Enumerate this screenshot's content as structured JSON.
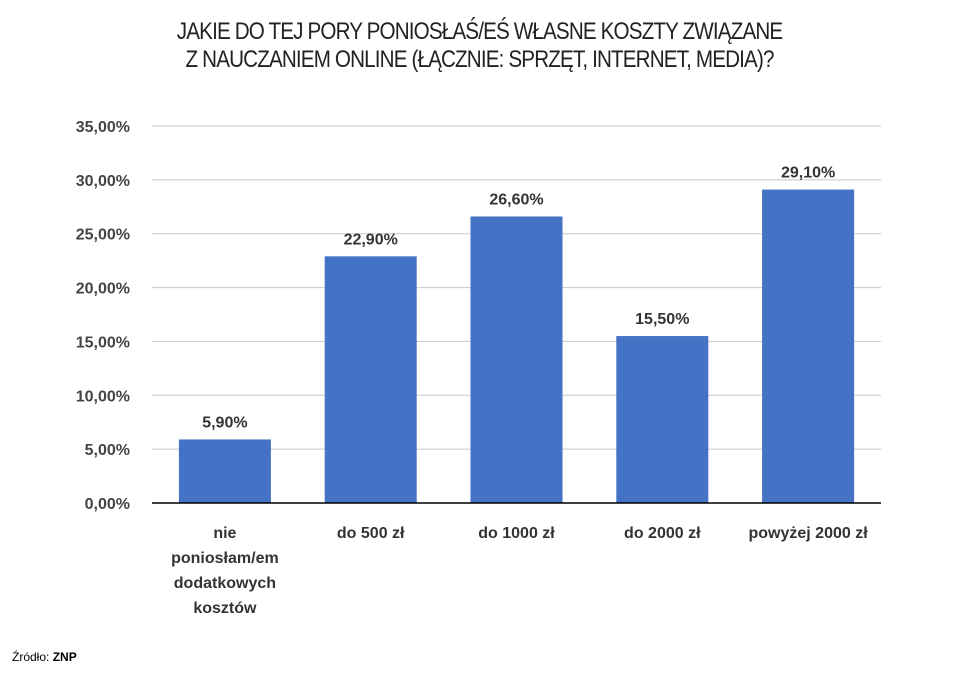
{
  "title_lines": [
    "JAKIE DO TEJ PORY PONIOSŁAŚ/EŚ WŁASNE KOSZTY ZWIĄZANE",
    "Z NAUCZANIEM ONLINE (ŁĄCZNIE: SPRZĘT, INTERNET, MEDIA)?"
  ],
  "source": {
    "label": "Źródło:",
    "value": "ZNP"
  },
  "chart_data": {
    "type": "bar",
    "title": "JAKIE DO TEJ PORY PONIOSŁAŚ/EŚ WŁASNE KOSZTY ZWIĄZANE Z NAUCZANIEM ONLINE (ŁĄCZNIE: SPRZĘT, INTERNET, MEDIA)?",
    "categories": [
      [
        "nie",
        "poniosłam/em",
        "dodatkowych",
        "kosztów"
      ],
      [
        "do 500 zł"
      ],
      [
        "do 1000 zł"
      ],
      [
        "do 2000 zł"
      ],
      [
        "powyżej 2000 zł"
      ]
    ],
    "values": [
      5.9,
      22.9,
      26.6,
      15.5,
      29.1
    ],
    "data_labels": [
      "5,90%",
      "22,90%",
      "26,60%",
      "15,50%",
      "29,10%"
    ],
    "yticks": [
      0,
      5,
      10,
      15,
      20,
      25,
      30,
      35
    ],
    "ytick_labels": [
      "0,00%",
      "5,00%",
      "10,00%",
      "15,00%",
      "20,00%",
      "25,00%",
      "30,00%",
      "35,00%"
    ],
    "ylim": [
      0,
      35
    ],
    "grid": true,
    "legend": "none",
    "bar_color": "#4472C4",
    "grid_color": "#C8C8C8",
    "axis_color": "#000000"
  }
}
